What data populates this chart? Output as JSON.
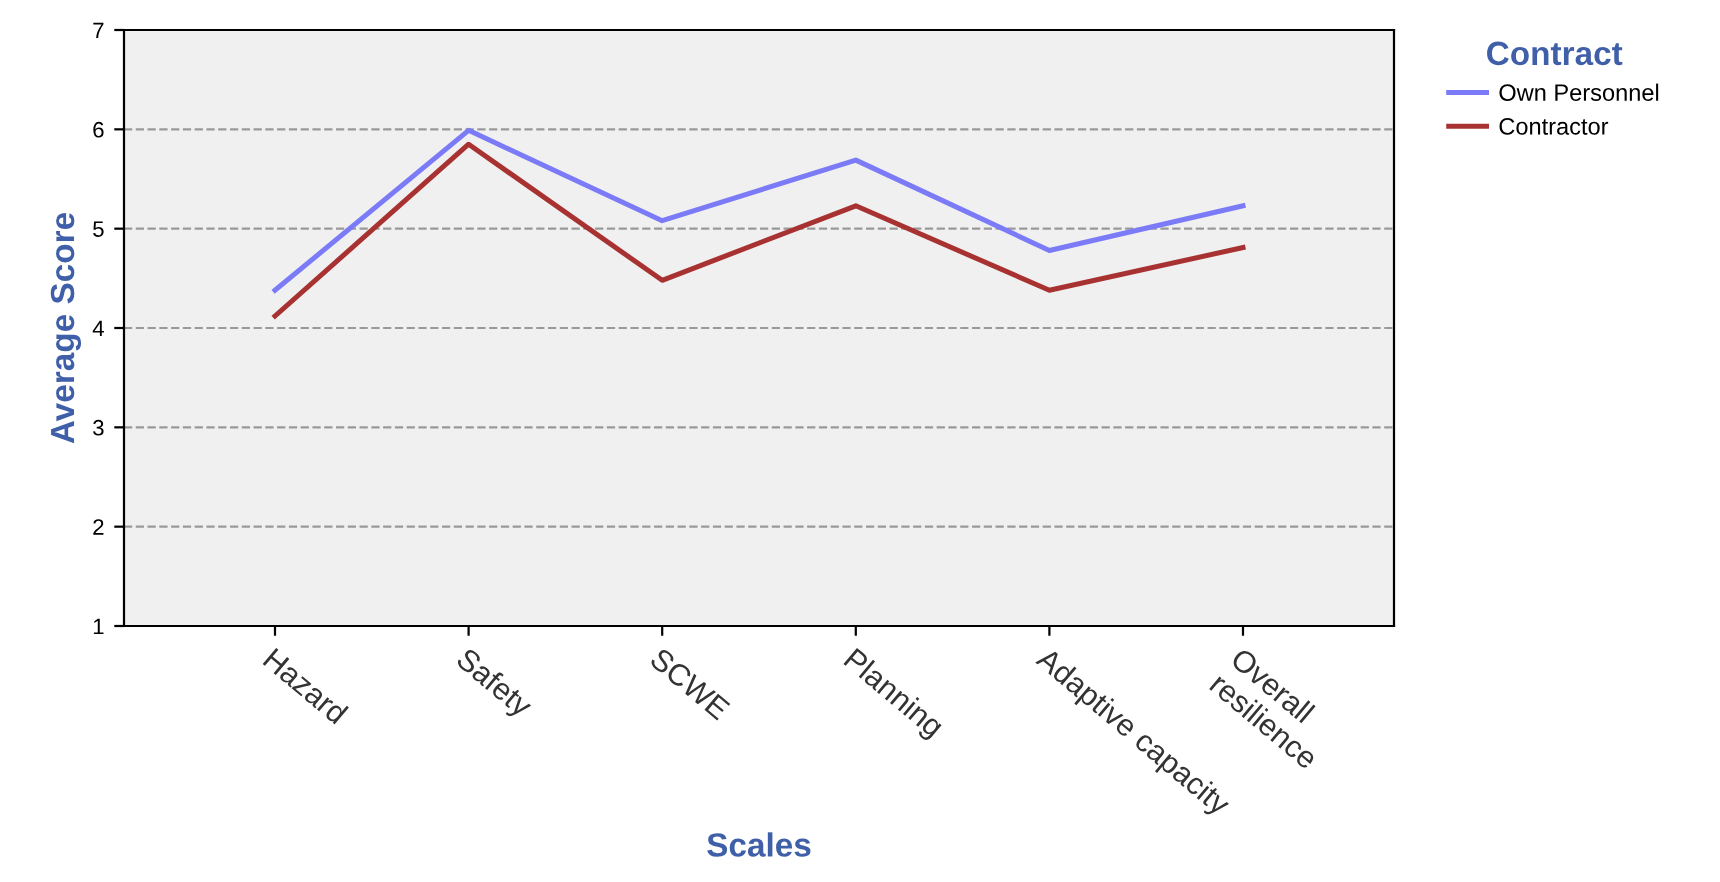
{
  "chart_data": {
    "type": "line",
    "xlabel": "Scales",
    "ylabel": "Average Score",
    "legend_title": "Contract",
    "legend": "top right",
    "categories": [
      "Hazard",
      "Safety",
      "SCWE",
      "Planning",
      "Adaptive capacity",
      "Overall\nresilience"
    ],
    "series": [
      {
        "name": "Own Personnel",
        "color": "#7b7bf7",
        "values": [
          4.38,
          5.99,
          5.08,
          5.69,
          4.78,
          5.23
        ]
      },
      {
        "name": "Contractor",
        "color": "#a83232",
        "values": [
          4.12,
          5.85,
          4.48,
          5.23,
          4.38,
          4.81
        ]
      }
    ],
    "ylim": [
      1,
      7
    ],
    "yticks": [
      1,
      2,
      3,
      4,
      5,
      6,
      7
    ],
    "grid": "y",
    "marker": "none",
    "line_style": "solid"
  }
}
